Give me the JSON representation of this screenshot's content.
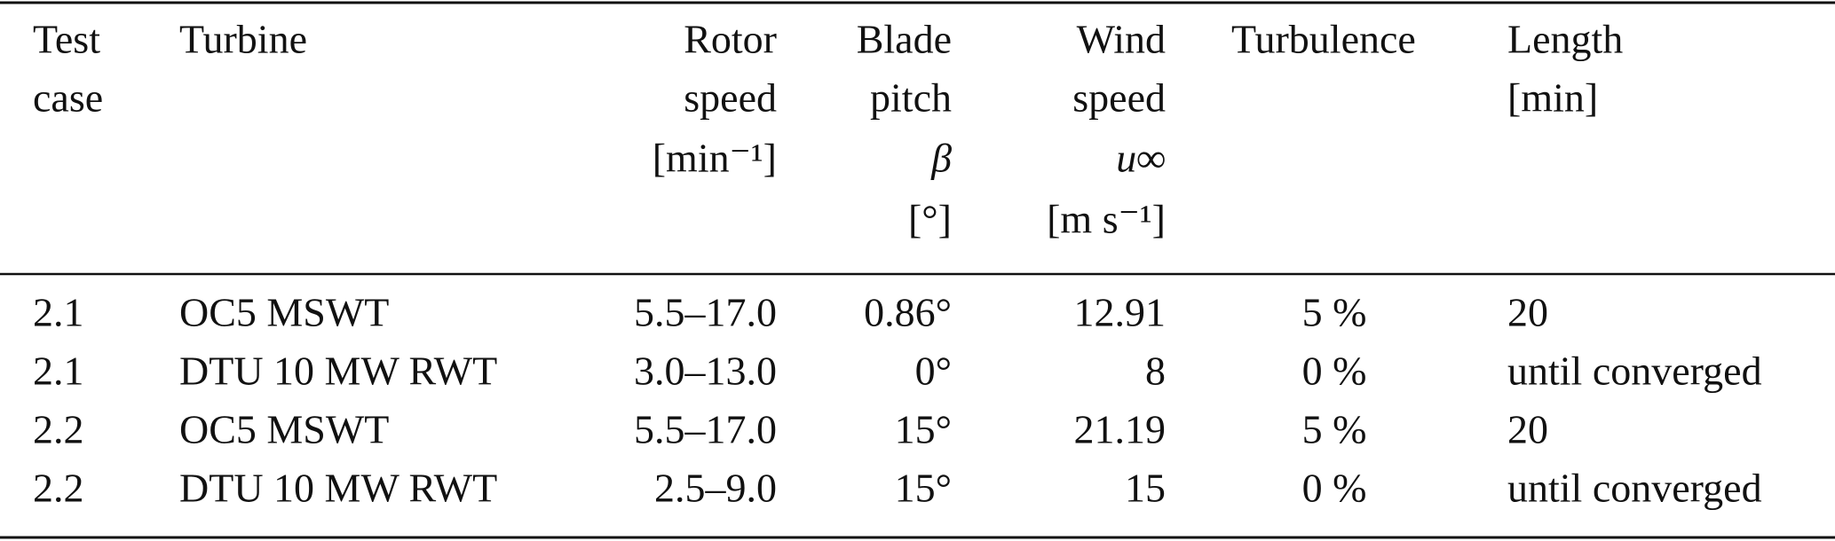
{
  "header": [
    [
      "Test",
      "case"
    ],
    [
      "Turbine"
    ],
    [
      "Rotor",
      "speed",
      "[min⁻¹]"
    ],
    [
      "Blade",
      "pitch",
      "β",
      "[°]"
    ],
    [
      "Wind",
      "speed",
      "u∞",
      "[m s⁻¹]"
    ],
    [
      "Turbulence"
    ],
    [
      "Length",
      "[min]"
    ]
  ],
  "rows": [
    [
      "2.1",
      "OC5 MSWT",
      "5.5–17.0",
      "0.86°",
      "12.91",
      "5 %",
      "20"
    ],
    [
      "2.1",
      "DTU 10 MW RWT",
      "3.0–13.0",
      "0°",
      "8",
      "0 %",
      "until converged"
    ],
    [
      "2.2",
      "OC5 MSWT",
      "5.5–17.0",
      "15°",
      "21.19",
      "5 %",
      "20"
    ],
    [
      "2.2",
      "DTU 10 MW RWT",
      "2.5–9.0",
      "15°",
      "15",
      "0 %",
      "until converged"
    ]
  ]
}
